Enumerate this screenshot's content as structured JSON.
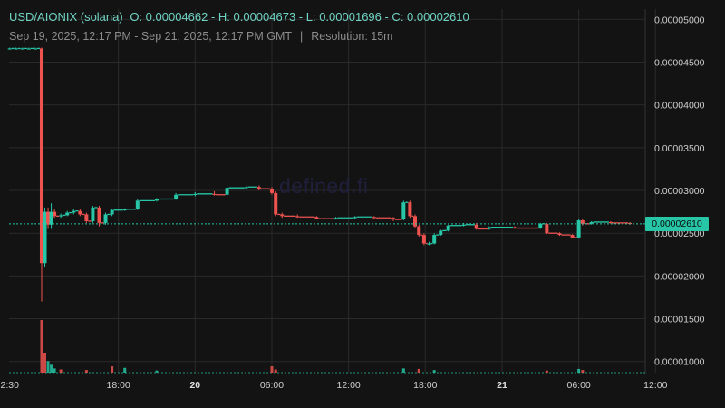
{
  "header": {
    "symbol": "USD/AIONIX (solana)",
    "ohlc": "O: 0.00004662 - H: 0.00004673 - L: 0.00001696 - C: 0.00002610",
    "range": "Sep 19, 2025, 12:17 PM - Sep 21, 2025, 12:17 PM GMT",
    "separator": "|",
    "resolution": "Resolution: 15m"
  },
  "watermark": "defined.fi",
  "current_price_label": "0.00002610",
  "colors": {
    "up": "#26c6a6",
    "down": "#ef5350",
    "background": "#131313",
    "grid": "#2a2a2a"
  },
  "chart_data": {
    "type": "candlestick",
    "y_axis": {
      "ticks": [
        "0.00005000",
        "0.00004500",
        "0.00004000",
        "0.00003500",
        "0.00003000",
        "0.00002500",
        "0.00002000",
        "0.00001500",
        "0.00001000"
      ],
      "range": [
        8.7e-06,
        5.12e-05
      ]
    },
    "x_axis": {
      "ticks": [
        {
          "label": "2:30",
          "hour": -2.5
        },
        {
          "label": "18:00",
          "hour": 6
        },
        {
          "label": "20",
          "hour": 12,
          "bold": true
        },
        {
          "label": "06:00",
          "hour": 18
        },
        {
          "label": "12:00",
          "hour": 24
        },
        {
          "label": "18:00",
          "hour": 30
        },
        {
          "label": "21",
          "hour": 36,
          "bold": true
        },
        {
          "label": "06:00",
          "hour": 42
        },
        {
          "label": "12:00",
          "hour": 48
        }
      ],
      "unit": "hours since Sep 20 00:00 GMT offset 12:00",
      "range": [
        -2.55,
        47.2
      ]
    },
    "last_price": 2.61e-05,
    "candles": [
      {
        "t": -2.5,
        "o": 4.66,
        "h": 4.67,
        "l": 4.65,
        "c": 4.66
      },
      {
        "t": -2.0,
        "o": 4.66,
        "h": 4.67,
        "l": 4.65,
        "c": 4.66
      },
      {
        "t": -1.5,
        "o": 4.66,
        "h": 4.67,
        "l": 4.65,
        "c": 4.66
      },
      {
        "t": -1.0,
        "o": 4.66,
        "h": 4.67,
        "l": 4.65,
        "c": 4.66
      },
      {
        "t": -0.5,
        "o": 4.66,
        "h": 4.67,
        "l": 4.65,
        "c": 4.66
      },
      {
        "t": 0.0,
        "o": 4.66,
        "h": 4.67,
        "l": 1.7,
        "c": 2.15
      },
      {
        "t": 0.25,
        "o": 2.15,
        "h": 2.8,
        "l": 2.1,
        "c": 2.75
      },
      {
        "t": 0.5,
        "o": 2.75,
        "h": 2.8,
        "l": 2.55,
        "c": 2.6
      },
      {
        "t": 0.75,
        "o": 2.6,
        "h": 2.85,
        "l": 2.55,
        "c": 2.75
      },
      {
        "t": 1.0,
        "o": 2.75,
        "h": 2.78,
        "l": 2.68,
        "c": 2.7
      },
      {
        "t": 1.5,
        "o": 2.7,
        "h": 2.73,
        "l": 2.68,
        "c": 2.71
      },
      {
        "t": 2.0,
        "o": 2.71,
        "h": 2.76,
        "l": 2.7,
        "c": 2.74
      },
      {
        "t": 2.5,
        "o": 2.74,
        "h": 2.78,
        "l": 2.72,
        "c": 2.76
      },
      {
        "t": 3.0,
        "o": 2.76,
        "h": 2.78,
        "l": 2.7,
        "c": 2.72
      },
      {
        "t": 3.5,
        "o": 2.72,
        "h": 2.74,
        "l": 2.62,
        "c": 2.64
      },
      {
        "t": 4.0,
        "o": 2.64,
        "h": 2.82,
        "l": 2.62,
        "c": 2.8
      },
      {
        "t": 4.5,
        "o": 2.8,
        "h": 2.82,
        "l": 2.58,
        "c": 2.62
      },
      {
        "t": 5.0,
        "o": 2.62,
        "h": 2.74,
        "l": 2.6,
        "c": 2.72
      },
      {
        "t": 5.5,
        "o": 2.72,
        "h": 2.78,
        "l": 2.7,
        "c": 2.77
      },
      {
        "t": 6.5,
        "o": 2.77,
        "h": 2.79,
        "l": 2.76,
        "c": 2.78
      },
      {
        "t": 7.5,
        "o": 2.78,
        "h": 2.9,
        "l": 2.77,
        "c": 2.88
      },
      {
        "t": 9.0,
        "o": 2.88,
        "h": 2.91,
        "l": 2.87,
        "c": 2.9
      },
      {
        "t": 10.5,
        "o": 2.9,
        "h": 2.97,
        "l": 2.89,
        "c": 2.95
      },
      {
        "t": 12.0,
        "o": 2.95,
        "h": 2.98,
        "l": 2.93,
        "c": 2.96
      },
      {
        "t": 13.5,
        "o": 2.96,
        "h": 2.99,
        "l": 2.94,
        "c": 2.95
      },
      {
        "t": 14.5,
        "o": 2.95,
        "h": 3.05,
        "l": 2.94,
        "c": 3.03
      },
      {
        "t": 16.0,
        "o": 3.03,
        "h": 3.06,
        "l": 3.01,
        "c": 3.04
      },
      {
        "t": 17.0,
        "o": 3.04,
        "h": 3.06,
        "l": 3.0,
        "c": 3.02
      },
      {
        "t": 18.0,
        "o": 3.02,
        "h": 3.04,
        "l": 2.95,
        "c": 2.97
      },
      {
        "t": 18.3,
        "o": 2.97,
        "h": 2.99,
        "l": 2.7,
        "c": 2.72
      },
      {
        "t": 18.8,
        "o": 2.72,
        "h": 2.74,
        "l": 2.68,
        "c": 2.7
      },
      {
        "t": 20.0,
        "o": 2.7,
        "h": 2.72,
        "l": 2.68,
        "c": 2.69
      },
      {
        "t": 21.5,
        "o": 2.69,
        "h": 2.7,
        "l": 2.66,
        "c": 2.67
      },
      {
        "t": 23.0,
        "o": 2.67,
        "h": 2.69,
        "l": 2.66,
        "c": 2.68
      },
      {
        "t": 24.5,
        "o": 2.68,
        "h": 2.7,
        "l": 2.67,
        "c": 2.69
      },
      {
        "t": 26.0,
        "o": 2.69,
        "h": 2.7,
        "l": 2.66,
        "c": 2.68
      },
      {
        "t": 27.5,
        "o": 2.68,
        "h": 2.69,
        "l": 2.64,
        "c": 2.66
      },
      {
        "t": 28.3,
        "o": 2.66,
        "h": 2.88,
        "l": 2.65,
        "c": 2.86
      },
      {
        "t": 28.8,
        "o": 2.86,
        "h": 2.88,
        "l": 2.68,
        "c": 2.7
      },
      {
        "t": 29.2,
        "o": 2.7,
        "h": 2.72,
        "l": 2.56,
        "c": 2.58
      },
      {
        "t": 29.5,
        "o": 2.58,
        "h": 2.6,
        "l": 2.46,
        "c": 2.48
      },
      {
        "t": 29.9,
        "o": 2.48,
        "h": 2.5,
        "l": 2.36,
        "c": 2.38
      },
      {
        "t": 30.3,
        "o": 2.38,
        "h": 2.4,
        "l": 2.36,
        "c": 2.38
      },
      {
        "t": 30.7,
        "o": 2.38,
        "h": 2.5,
        "l": 2.37,
        "c": 2.48
      },
      {
        "t": 31.2,
        "o": 2.48,
        "h": 2.54,
        "l": 2.47,
        "c": 2.53
      },
      {
        "t": 31.8,
        "o": 2.53,
        "h": 2.6,
        "l": 2.52,
        "c": 2.59
      },
      {
        "t": 33.0,
        "o": 2.59,
        "h": 2.62,
        "l": 2.58,
        "c": 2.6
      },
      {
        "t": 34.0,
        "o": 2.6,
        "h": 2.62,
        "l": 2.54,
        "c": 2.55
      },
      {
        "t": 35.0,
        "o": 2.55,
        "h": 2.58,
        "l": 2.54,
        "c": 2.57
      },
      {
        "t": 37.0,
        "o": 2.57,
        "h": 2.58,
        "l": 2.55,
        "c": 2.56
      },
      {
        "t": 39.0,
        "o": 2.56,
        "h": 2.62,
        "l": 2.55,
        "c": 2.61
      },
      {
        "t": 39.5,
        "o": 2.61,
        "h": 2.62,
        "l": 2.49,
        "c": 2.5
      },
      {
        "t": 40.5,
        "o": 2.5,
        "h": 2.51,
        "l": 2.47,
        "c": 2.48
      },
      {
        "t": 41.5,
        "o": 2.48,
        "h": 2.49,
        "l": 2.44,
        "c": 2.45
      },
      {
        "t": 42.0,
        "o": 2.45,
        "h": 2.67,
        "l": 2.44,
        "c": 2.65
      },
      {
        "t": 42.3,
        "o": 2.65,
        "h": 2.67,
        "l": 2.59,
        "c": 2.61
      },
      {
        "t": 43.0,
        "o": 2.61,
        "h": 2.64,
        "l": 2.6,
        "c": 2.63
      },
      {
        "t": 44.5,
        "o": 2.63,
        "h": 2.64,
        "l": 2.61,
        "c": 2.62
      },
      {
        "t": 46.0,
        "o": 2.62,
        "h": 2.63,
        "l": 2.6,
        "c": 2.61
      }
    ],
    "volume": [
      {
        "t": 0.0,
        "v": 1.0,
        "up": false
      },
      {
        "t": 0.25,
        "v": 0.38,
        "up": false
      },
      {
        "t": 0.5,
        "v": 0.22,
        "up": true
      },
      {
        "t": 0.75,
        "v": 0.15,
        "up": true
      },
      {
        "t": 1.0,
        "v": 0.08,
        "up": true
      },
      {
        "t": 1.5,
        "v": 0.06,
        "up": false
      },
      {
        "t": 3.5,
        "v": 0.05,
        "up": false
      },
      {
        "t": 5.5,
        "v": 0.12,
        "up": false
      },
      {
        "t": 6.5,
        "v": 0.09,
        "up": true
      },
      {
        "t": 9.0,
        "v": 0.04,
        "up": true
      },
      {
        "t": 18.0,
        "v": 0.12,
        "up": false
      },
      {
        "t": 18.3,
        "v": 0.06,
        "up": false
      },
      {
        "t": 28.3,
        "v": 0.08,
        "up": true
      },
      {
        "t": 29.5,
        "v": 0.07,
        "up": false
      },
      {
        "t": 30.7,
        "v": 0.05,
        "up": true
      },
      {
        "t": 39.5,
        "v": 0.04,
        "up": false
      },
      {
        "t": 42.0,
        "v": 0.07,
        "up": true
      },
      {
        "t": 42.3,
        "v": 0.05,
        "up": false
      }
    ]
  }
}
